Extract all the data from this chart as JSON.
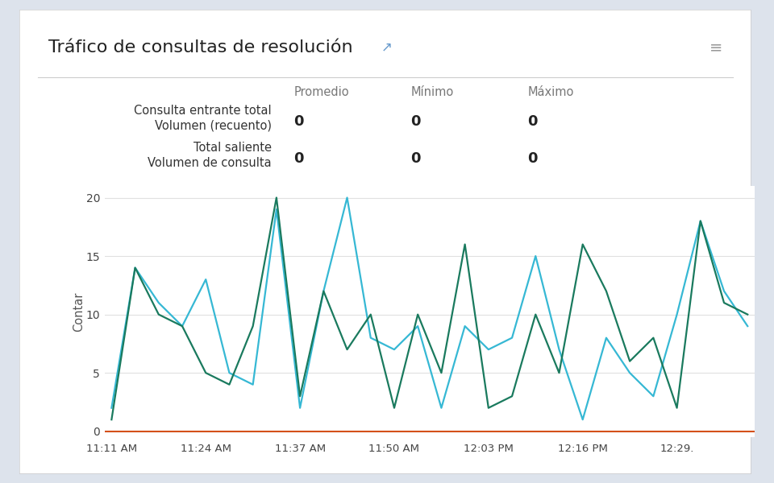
{
  "title": "Tráfico de consultas de resolución",
  "ylabel": "Contar",
  "background_color": "#dde3ec",
  "panel_color": "#ffffff",
  "table_headers": [
    "Promedio",
    "Mínimo",
    "Máximo"
  ],
  "row1_label": "Consulta entrante total\nVolumen (recuento)",
  "row2_label": "Total saliente\nVolumen de consulta",
  "x_ticks_labels": [
    "11:11 AM",
    "11:24 AM",
    "11:37 AM",
    "11:50 AM",
    "12:03 PM",
    "12:16 PM",
    "12:29."
  ],
  "ylim": [
    -0.5,
    21
  ],
  "yticks": [
    0,
    5,
    10,
    15,
    20
  ],
  "color_line1": "#36b8d4",
  "color_line2": "#1a7a5e",
  "color_baseline": "#d4501a",
  "series1": [
    2,
    14,
    11,
    9,
    13,
    5,
    4,
    19,
    2,
    12,
    20,
    8,
    7,
    9,
    2,
    9,
    7,
    8,
    15,
    7,
    1,
    8,
    5,
    3,
    10,
    18,
    12,
    9
  ],
  "series2": [
    1,
    14,
    10,
    9,
    5,
    4,
    9,
    20,
    3,
    12,
    7,
    10,
    2,
    10,
    5,
    16,
    2,
    3,
    10,
    5,
    16,
    12,
    6,
    8,
    2,
    18,
    11,
    10
  ],
  "num_points": 28,
  "tick_indices": [
    0,
    4,
    8,
    12,
    16,
    20,
    24
  ]
}
